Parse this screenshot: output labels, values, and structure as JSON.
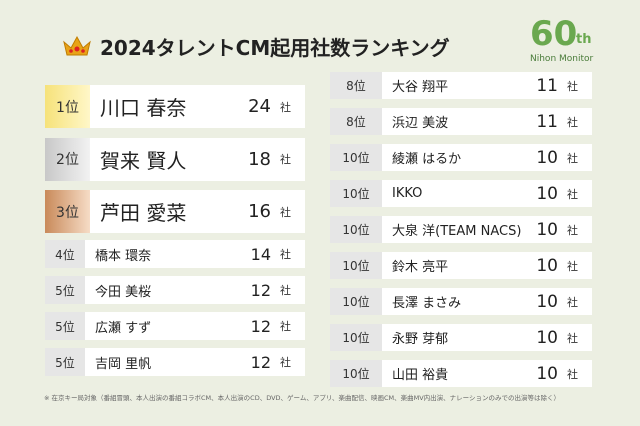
{
  "header": {
    "title": "2024タレントCM起用社数ランキング"
  },
  "logo": {
    "number": "60",
    "suffix": "th",
    "name": "Nihon Monitor"
  },
  "unit": "社",
  "left": [
    {
      "rank": "1位",
      "name": "川口 春奈",
      "count": 24
    },
    {
      "rank": "2位",
      "name": "賀来 賢人",
      "count": 18
    },
    {
      "rank": "3位",
      "name": "芦田 愛菜",
      "count": 16
    },
    {
      "rank": "4位",
      "name": "橋本 環奈",
      "count": 14
    },
    {
      "rank": "5位",
      "name": "今田 美桜",
      "count": 12
    },
    {
      "rank": "5位",
      "name": "広瀬 すず",
      "count": 12
    },
    {
      "rank": "5位",
      "name": "吉岡 里帆",
      "count": 12
    }
  ],
  "right": [
    {
      "rank": "8位",
      "name": "大谷 翔平",
      "count": 11
    },
    {
      "rank": "8位",
      "name": "浜辺 美波",
      "count": 11
    },
    {
      "rank": "10位",
      "name": "綾瀬 はるか",
      "count": 10
    },
    {
      "rank": "10位",
      "name": "IKKO",
      "count": 10
    },
    {
      "rank": "10位",
      "name": "大泉 洋(TEAM NACS)",
      "count": 10
    },
    {
      "rank": "10位",
      "name": "鈴木 亮平",
      "count": 10
    },
    {
      "rank": "10位",
      "name": "長澤 まさみ",
      "count": 10
    },
    {
      "rank": "10位",
      "name": "永野 芽郁",
      "count": 10
    },
    {
      "rank": "10位",
      "name": "山田 裕貴",
      "count": 10
    }
  ],
  "footnote": "※ 在京キー局対象（番組冒頭、本人出演の番組コラボCM、本人出演のCD、DVD、ゲーム、アプリ、楽曲配信、映画CM、楽曲MV内出演、ナレーションのみでの出演等は除く）"
}
